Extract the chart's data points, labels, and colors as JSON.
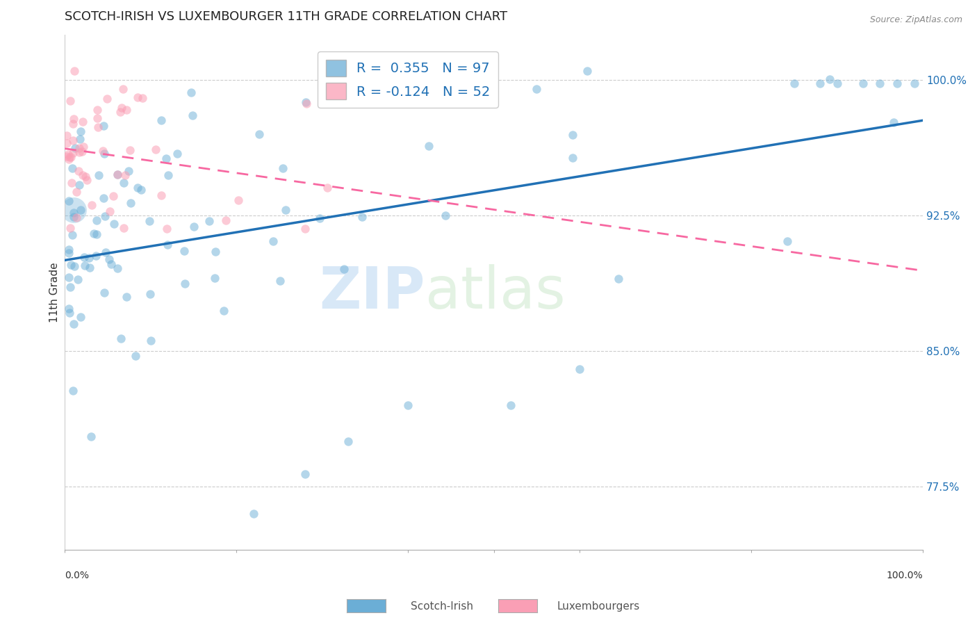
{
  "title": "SCOTCH-IRISH VS LUXEMBOURGER 11TH GRADE CORRELATION CHART",
  "source": "Source: ZipAtlas.com",
  "ylabel": "11th Grade",
  "yticks": [
    0.775,
    0.85,
    0.925,
    1.0
  ],
  "ytick_labels": [
    "77.5%",
    "85.0%",
    "92.5%",
    "100.0%"
  ],
  "xlim": [
    0.0,
    1.0
  ],
  "ylim": [
    0.74,
    1.025
  ],
  "blue_R": 0.355,
  "blue_N": 97,
  "pink_R": -0.124,
  "pink_N": 52,
  "blue_color": "#6baed6",
  "pink_color": "#fa9fb5",
  "blue_line_color": "#2171b5",
  "pink_line_color": "#f768a1",
  "watermark_zip": "ZIP",
  "watermark_atlas": "atlas",
  "legend_entries": [
    "Scotch-Irish",
    "Luxembourgers"
  ],
  "circle_size_blue": 80,
  "circle_size_pink": 80
}
